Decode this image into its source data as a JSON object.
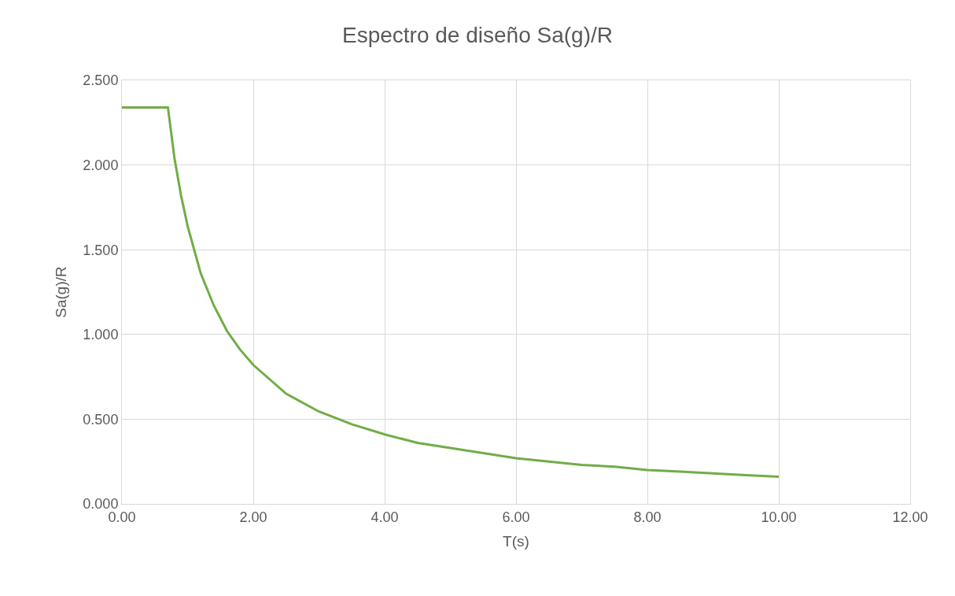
{
  "chart_data": {
    "type": "line",
    "title": "Espectro de diseño Sa(g)/R",
    "xlabel": "T(s)",
    "ylabel": "Sa(g)/R",
    "x": [
      0,
      0.7,
      0.8,
      0.9,
      1.0,
      1.2,
      1.4,
      1.6,
      1.8,
      2.0,
      2.5,
      3.0,
      3.5,
      4.0,
      4.5,
      5.0,
      5.5,
      6.0,
      6.5,
      7.0,
      7.5,
      8.0,
      8.5,
      9.0,
      9.5,
      10.0
    ],
    "series": [
      {
        "color": "#70ad47",
        "values": [
          2.34,
          2.34,
          2.04,
          1.82,
          1.64,
          1.36,
          1.17,
          1.02,
          0.91,
          0.82,
          0.65,
          0.545,
          0.47,
          0.41,
          0.36,
          0.33,
          0.3,
          0.27,
          0.25,
          0.23,
          0.22,
          0.2,
          0.19,
          0.18,
          0.17,
          0.16
        ]
      }
    ],
    "xlim": [
      0,
      12
    ],
    "ylim": [
      0,
      2.5
    ],
    "xticks": [
      {
        "value": 0,
        "label": "0.00"
      },
      {
        "value": 2,
        "label": "2.00"
      },
      {
        "value": 4,
        "label": "4.00"
      },
      {
        "value": 6,
        "label": "6.00"
      },
      {
        "value": 8,
        "label": "8.00"
      },
      {
        "value": 10,
        "label": "10.00"
      },
      {
        "value": 12,
        "label": "12.00"
      }
    ],
    "yticks": [
      {
        "value": 0,
        "label": "0.000"
      },
      {
        "value": 0.5,
        "label": "0.500"
      },
      {
        "value": 1,
        "label": "1.000"
      },
      {
        "value": 1.5,
        "label": "1.500"
      },
      {
        "value": 2,
        "label": "2.000"
      },
      {
        "value": 2.5,
        "label": "2.500"
      }
    ],
    "grid": true,
    "marker": "none",
    "line_style": "solid"
  }
}
